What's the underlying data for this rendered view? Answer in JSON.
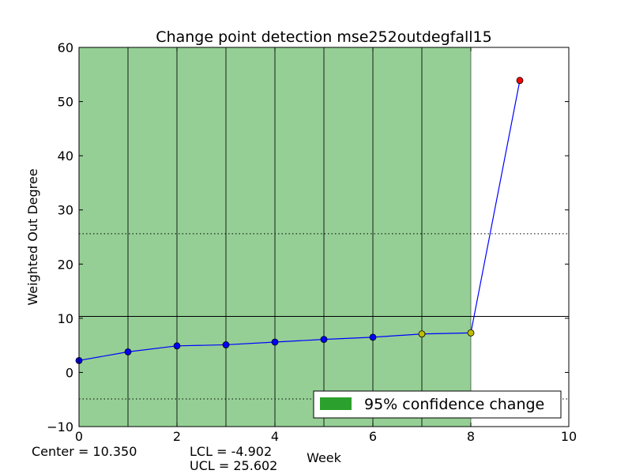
{
  "chart_data": {
    "type": "line",
    "title": "Change point detection mse252outdegfall15",
    "xlabel": "Week",
    "ylabel": "Weighted Out Degree",
    "xlim": [
      0,
      10
    ],
    "ylim": [
      -10,
      60
    ],
    "xticks": [
      0,
      2,
      4,
      6,
      8,
      10
    ],
    "yticks": [
      -10,
      0,
      10,
      20,
      30,
      40,
      50,
      60
    ],
    "x": [
      0,
      1,
      2,
      3,
      4,
      5,
      6,
      7,
      8,
      9
    ],
    "y": [
      2.2,
      3.8,
      4.9,
      5.1,
      5.6,
      6.1,
      6.5,
      7.1,
      7.3,
      53.9
    ],
    "point_colors": [
      "#0000ff",
      "#0000ff",
      "#0000ff",
      "#0000ff",
      "#0000ff",
      "#0000ff",
      "#0000ff",
      "#bfbf00",
      "#bfbf00",
      "#ff0000"
    ],
    "line_color": "#0000ff",
    "center": 10.35,
    "lcl": -4.902,
    "ucl": 25.602,
    "change_region": {
      "x_start": 0,
      "x_end": 8,
      "color": "#2ca02c"
    },
    "vertical_lines_x": [
      1,
      2,
      3,
      4,
      5,
      6,
      7
    ],
    "legend": {
      "label": "95% confidence change",
      "placement": "lower-right"
    }
  },
  "stats": {
    "center_text": "Center = 10.350",
    "lcl_text": "LCL = -4.902",
    "ucl_text": "UCL = 25.602"
  }
}
